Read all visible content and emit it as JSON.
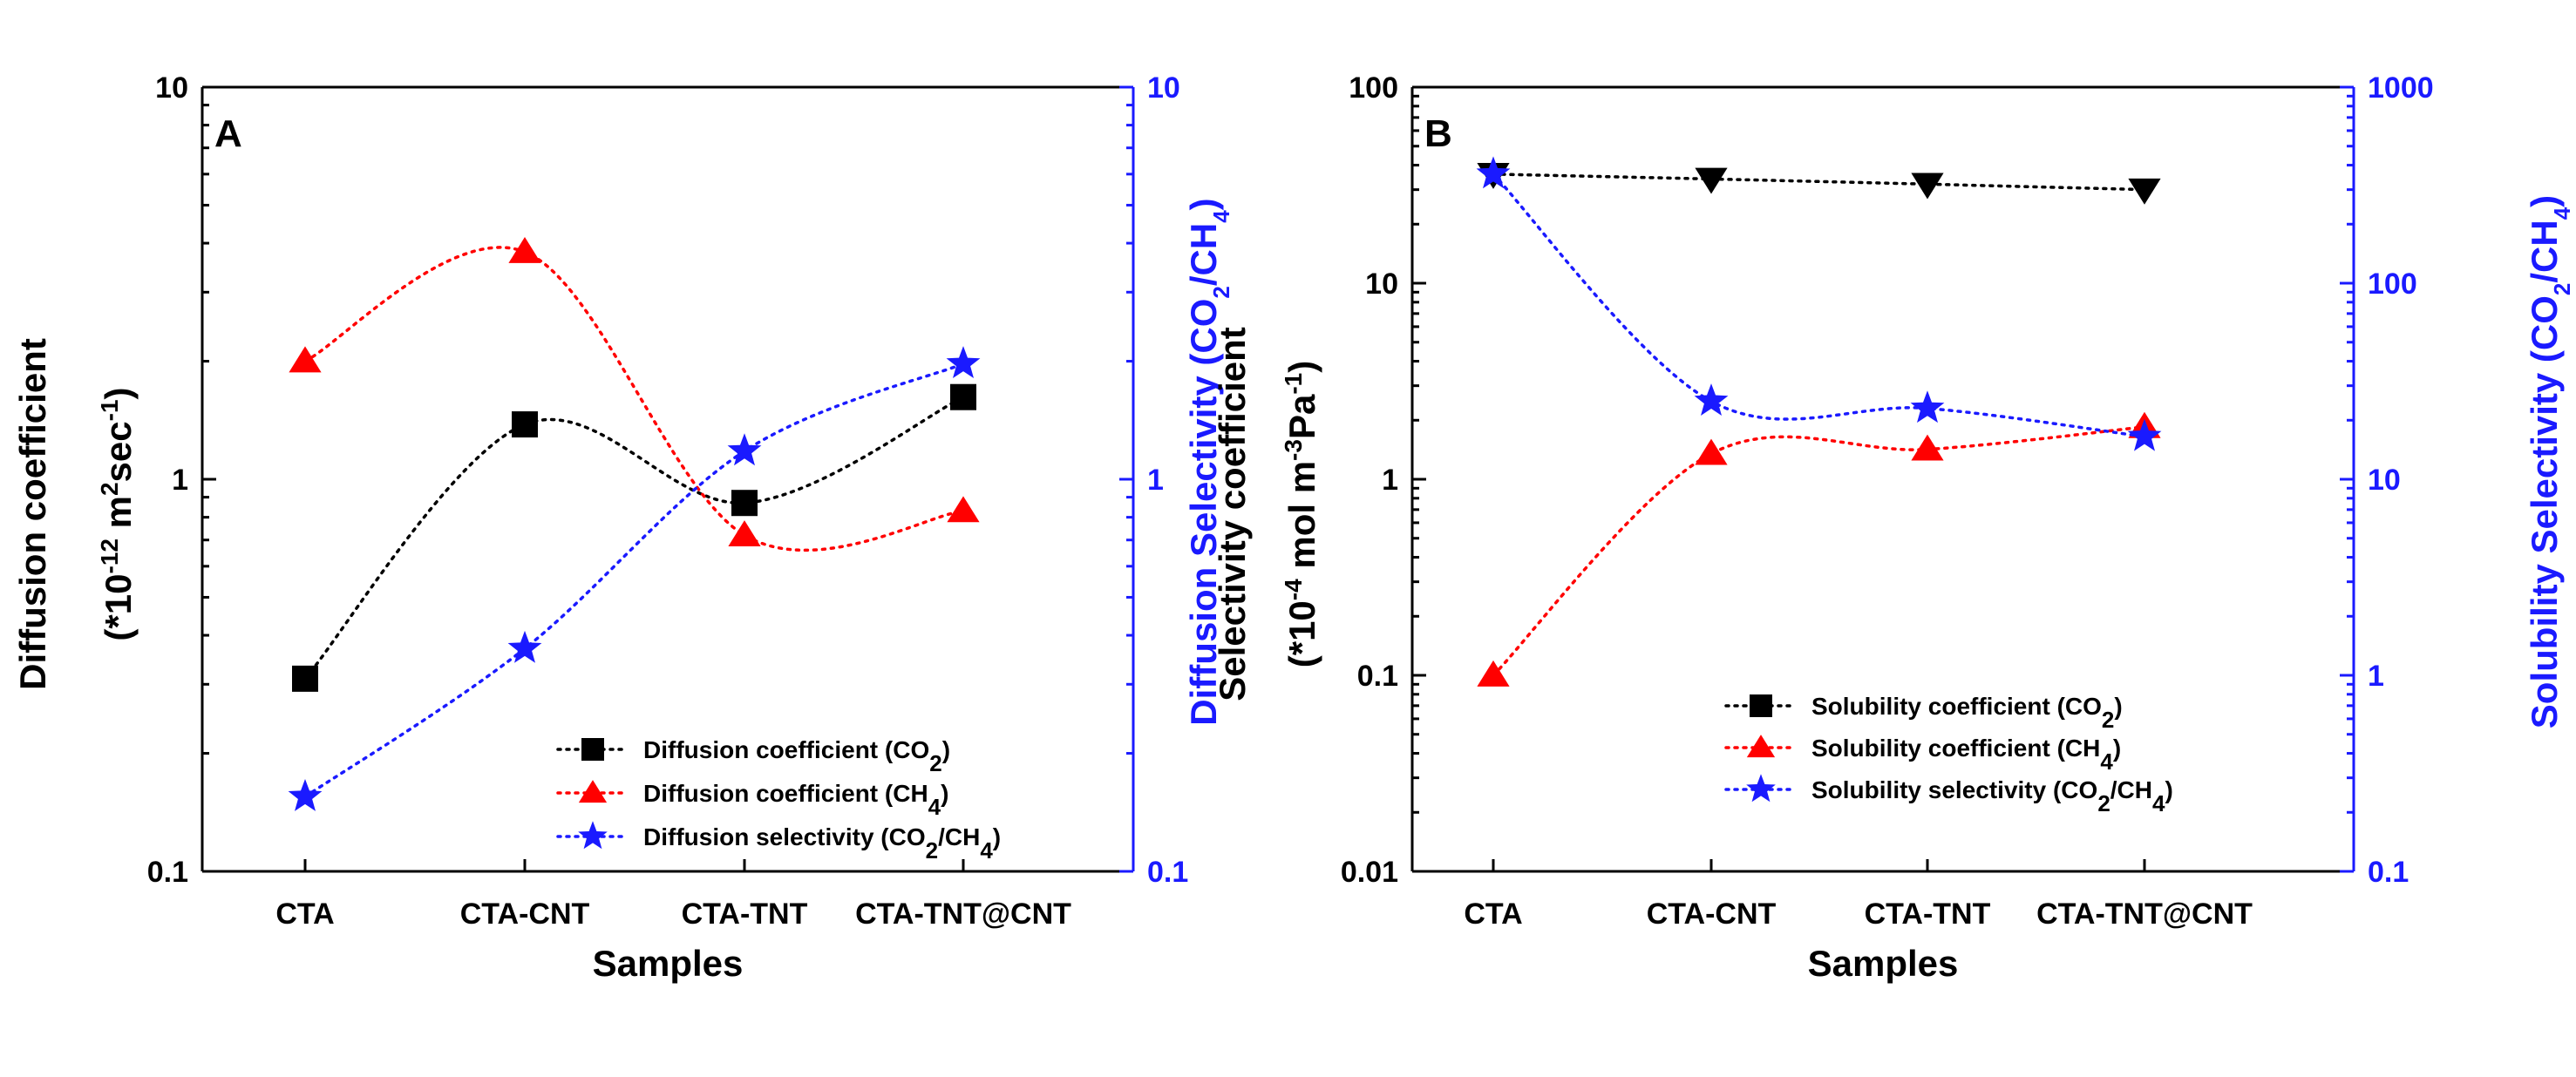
{
  "chart_data": [
    {
      "type": "scatter",
      "panel_label": "A",
      "categories": [
        "CTA",
        "CTA-CNT",
        "CTA-TNT",
        "CTA-TNT@CNT"
      ],
      "xlabel": "Samples",
      "ylabel_line1": "Diffusion coefficient",
      "ylabel_line2_parts": [
        "(*10",
        "-12",
        " m",
        "2",
        "sec",
        "-1",
        ")"
      ],
      "y2label_parts": [
        "Diffusion Selectivity (CO",
        "2",
        "/CH",
        "4",
        ")"
      ],
      "yscale": "log",
      "ylim": [
        0.1,
        10
      ],
      "y_ticks": [
        {
          "value": 0.1,
          "label": "0.1"
        },
        {
          "value": 1,
          "label": "1"
        },
        {
          "value": 10,
          "label": "10"
        }
      ],
      "y2lim": [
        0.1,
        10
      ],
      "y2_ticks": [
        {
          "value": 0.1,
          "label": "0.1"
        },
        {
          "value": 1,
          "label": "1"
        },
        {
          "value": 10,
          "label": "10"
        }
      ],
      "series": [
        {
          "name": "Diffusion coefficient (CO2)",
          "legend_parts": [
            "Diffusion coefficient (CO",
            "2",
            ")"
          ],
          "axis": "left",
          "marker": "square",
          "color": "#000000",
          "values": [
            0.31,
            1.38,
            0.87,
            1.62
          ]
        },
        {
          "name": "Diffusion coefficient (CH4)",
          "legend_parts": [
            "Diffusion coefficient (CH",
            "4",
            ")"
          ],
          "axis": "left",
          "marker": "triangle",
          "color": "#ff0000",
          "values": [
            2.0,
            3.8,
            0.72,
            0.83
          ]
        },
        {
          "name": "Diffusion selectivity (CO2/CH4)",
          "legend_parts": [
            "Diffusion selectivity (CO",
            "2",
            "/CH",
            "4",
            ")"
          ],
          "axis": "right",
          "marker": "star",
          "color": "#1a1aff",
          "values": [
            0.155,
            0.37,
            1.18,
            1.97
          ]
        }
      ]
    },
    {
      "type": "scatter",
      "panel_label": "B",
      "categories": [
        "CTA",
        "CTA-CNT",
        "CTA-TNT",
        "CTA-TNT@CNT"
      ],
      "xlabel": "Samples",
      "ylabel_line1": "Selectivity coefficient",
      "ylabel_line2_parts": [
        "(*10",
        "-4",
        " mol m",
        "-3",
        "Pa",
        "-1",
        ")"
      ],
      "y2label_parts": [
        "Solubility Selectivity (CO",
        "2",
        "/CH",
        "4",
        ")"
      ],
      "yscale": "log",
      "ylim": [
        0.01,
        100
      ],
      "y_ticks": [
        {
          "value": 0.01,
          "label": "0.01"
        },
        {
          "value": 0.1,
          "label": "0.1"
        },
        {
          "value": 1,
          "label": "1"
        },
        {
          "value": 10,
          "label": "10"
        },
        {
          "value": 100,
          "label": "100"
        }
      ],
      "y2lim": [
        0.1,
        1000
      ],
      "y2_ticks": [
        {
          "value": 0.1,
          "label": "0.1"
        },
        {
          "value": 1,
          "label": "1"
        },
        {
          "value": 10,
          "label": "10"
        },
        {
          "value": 100,
          "label": "100"
        },
        {
          "value": 1000,
          "label": "1000"
        }
      ],
      "series": [
        {
          "name": "Solubility coefficient (CO2)",
          "legend_parts": [
            "Solubility coefficient (CO",
            "2",
            ")"
          ],
          "axis": "left",
          "marker": "square",
          "point_marker": "triangle-down",
          "color": "#000000",
          "values": [
            36,
            34,
            32,
            30
          ]
        },
        {
          "name": "Solubility coefficient (CH4)",
          "legend_parts": [
            "Solubility coefficient (CH",
            "4",
            ")"
          ],
          "axis": "left",
          "marker": "triangle",
          "color": "#ff0000",
          "values": [
            0.1,
            1.35,
            1.42,
            1.85
          ]
        },
        {
          "name": "Solubility selectivity (CO2/CH4)",
          "legend_parts": [
            "Solubility selectivity (CO",
            "2",
            "/CH",
            "4",
            ")"
          ],
          "axis": "right",
          "marker": "star",
          "color": "#1a1aff",
          "values": [
            360,
            25,
            23,
            16.5
          ]
        }
      ]
    }
  ]
}
